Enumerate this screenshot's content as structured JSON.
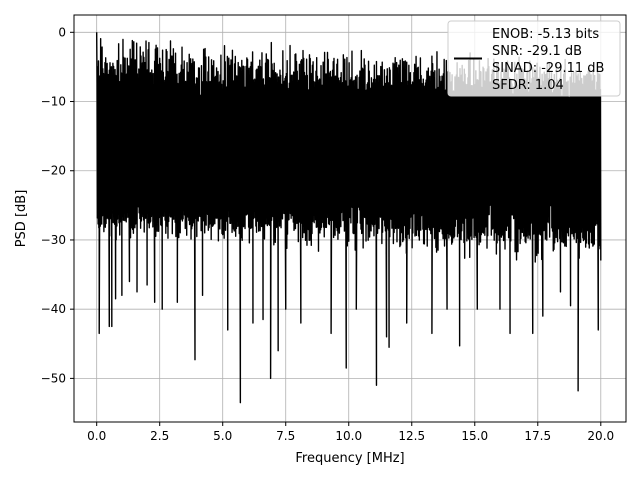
{
  "colors": {
    "line": "#000000",
    "grid": "#b0b0b0",
    "axes": "#000000",
    "background": "#ffffff",
    "legend_edge": "#cccccc"
  },
  "chart_data": {
    "type": "line",
    "xlabel": "Frequency [MHz]",
    "ylabel": "PSD [dB]",
    "xlim": [
      -0.9,
      21.0
    ],
    "ylim": [
      -56.3,
      2.5
    ],
    "xticks": [
      0.0,
      2.5,
      5.0,
      7.5,
      10.0,
      12.5,
      15.0,
      17.5,
      20.0
    ],
    "xtick_labels": [
      "0.0",
      "2.5",
      "5.0",
      "7.5",
      "10.0",
      "12.5",
      "15.0",
      "17.5",
      "20.0"
    ],
    "yticks": [
      0,
      -10,
      -20,
      -30,
      -40,
      -50
    ],
    "ytick_labels": [
      "0",
      "−10",
      "−20",
      "−30",
      "−40",
      "−50"
    ],
    "grid": true,
    "legend_position": "top-right",
    "legend": [
      "ENOB: -5.13 bits",
      "SNR: -29.1 dB",
      "SINAD: -29.11 dB",
      "SFDR: 1.04"
    ],
    "series": [
      {
        "style": "noise-band",
        "x_range": [
          0.0,
          20.0
        ],
        "band_top": [
          -5,
          -8
        ],
        "band_bottom": [
          -27,
          -31
        ],
        "dense_top": -10,
        "dense_bottom": -24,
        "peak": {
          "x": 0.0,
          "y": 0.0
        },
        "dips": [
          [
            0.1,
            -43.5
          ],
          [
            0.5,
            -42.5
          ],
          [
            0.6,
            -42.5
          ],
          [
            0.75,
            -38.5
          ],
          [
            1.0,
            -38
          ],
          [
            1.3,
            -36
          ],
          [
            1.6,
            -37.5
          ],
          [
            2.0,
            -36.5
          ],
          [
            2.3,
            -39
          ],
          [
            2.6,
            -40
          ],
          [
            3.2,
            -39
          ],
          [
            3.9,
            -47.3
          ],
          [
            4.2,
            -38
          ],
          [
            5.2,
            -43
          ],
          [
            5.7,
            -53.5
          ],
          [
            6.2,
            -42
          ],
          [
            6.6,
            -41.5
          ],
          [
            6.9,
            -50
          ],
          [
            7.2,
            -46
          ],
          [
            7.5,
            -40
          ],
          [
            8.1,
            -42
          ],
          [
            9.3,
            -43.5
          ],
          [
            9.9,
            -48.5
          ],
          [
            10.3,
            -40
          ],
          [
            11.1,
            -51
          ],
          [
            11.5,
            -44
          ],
          [
            11.6,
            -45.5
          ],
          [
            12.3,
            -42
          ],
          [
            13.3,
            -43.5
          ],
          [
            13.9,
            -40
          ],
          [
            14.4,
            -45.3
          ],
          [
            15.1,
            -40
          ],
          [
            16.0,
            -40
          ],
          [
            16.4,
            -43.5
          ],
          [
            17.3,
            -43.5
          ],
          [
            17.7,
            -41
          ],
          [
            18.4,
            -37.5
          ],
          [
            18.8,
            -39.5
          ],
          [
            19.1,
            -51.8
          ],
          [
            19.9,
            -43
          ]
        ]
      }
    ]
  }
}
